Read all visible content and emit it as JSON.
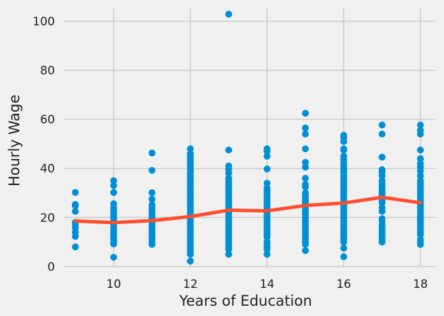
{
  "chart_data": {
    "type": "scatter",
    "title": "",
    "xlabel": "Years of Education",
    "ylabel": "Hourly Wage",
    "xlim": [
      8.7,
      18.4
    ],
    "ylim": [
      -2,
      107
    ],
    "xticks": [
      10,
      12,
      14,
      16,
      18
    ],
    "yticks": [
      0,
      20,
      40,
      60,
      80,
      100
    ],
    "grid": true,
    "legend": "none",
    "colors": {
      "points": "#008fd5",
      "line": "#fc4f30",
      "grid": "#cbcbcb",
      "background": "#f0f0f0"
    },
    "scatter": {
      "9": [
        30.2,
        25.3,
        24.8,
        22.5,
        18.0,
        17.2,
        15.8,
        14.0,
        12.3,
        8.0
      ],
      "10": [
        35.0,
        33.0,
        30.2,
        25.6,
        24.0,
        22.8,
        22.0,
        21.0,
        20.0,
        19.0,
        18.0,
        17.0,
        16.0,
        15.0,
        14.0,
        13.0,
        12.0,
        11.0,
        10.0,
        9.2,
        3.8
      ],
      "11": [
        46.3,
        39.2,
        30.1,
        27.5,
        25.2,
        24.0,
        23.0,
        22.0,
        21.0,
        20.0,
        19.0,
        18.0,
        17.0,
        16.0,
        15.0,
        14.0,
        13.0,
        12.0,
        11.0,
        10.0,
        9.0
      ],
      "12": [
        48.0,
        46.0,
        45.0,
        44.0,
        43.0,
        42.0,
        41.0,
        40.0,
        39.0,
        38.0,
        37.0,
        36.0,
        35.0,
        34.0,
        33.0,
        32.0,
        31.0,
        30.0,
        29.0,
        28.0,
        27.0,
        26.0,
        25.0,
        24.0,
        23.0,
        22.0,
        21.0,
        20.0,
        19.0,
        18.0,
        17.0,
        16.0,
        15.0,
        14.0,
        13.0,
        12.0,
        11.0,
        10.0,
        9.0,
        8.0,
        7.0,
        6.0,
        5.0,
        2.2
      ],
      "13": [
        102.9,
        47.5,
        41.0,
        39.5,
        38.0,
        36.0,
        35.0,
        34.0,
        33.0,
        32.0,
        31.0,
        30.0,
        29.0,
        28.0,
        27.0,
        26.0,
        25.0,
        24.0,
        23.0,
        22.0,
        21.0,
        20.0,
        19.0,
        18.0,
        17.0,
        16.0,
        15.0,
        14.0,
        13.0,
        12.0,
        11.0,
        10.0,
        9.0,
        8.0,
        7.0,
        5.0
      ],
      "14": [
        48.0,
        47.0,
        45.0,
        39.8,
        34.0,
        32.0,
        31.0,
        30.0,
        29.0,
        28.0,
        27.0,
        26.0,
        25.0,
        24.0,
        23.0,
        22.0,
        21.0,
        20.0,
        19.0,
        18.0,
        17.0,
        16.0,
        15.0,
        14.0,
        13.0,
        12.0,
        10.0,
        9.0,
        8.0,
        7.0,
        5.0
      ],
      "15": [
        62.5,
        56.5,
        54.0,
        48.0,
        42.5,
        40.5,
        36.0,
        33.5,
        32.5,
        30.0,
        29.0,
        28.0,
        27.0,
        26.0,
        25.0,
        24.0,
        23.0,
        22.0,
        21.0,
        20.0,
        19.0,
        18.0,
        17.0,
        16.0,
        15.0,
        14.0,
        13.0,
        12.0,
        11.0,
        10.0,
        9.0,
        6.5
      ],
      "16": [
        53.5,
        52.5,
        51.0,
        48.0,
        47.5,
        45.0,
        43.5,
        42.0,
        41.0,
        40.0,
        39.0,
        38.0,
        37.0,
        36.0,
        35.0,
        34.0,
        33.0,
        32.0,
        31.0,
        30.0,
        29.0,
        28.0,
        27.0,
        26.0,
        25.0,
        24.0,
        23.0,
        22.0,
        21.0,
        20.0,
        19.0,
        18.0,
        17.0,
        16.0,
        15.0,
        14.0,
        13.0,
        12.0,
        11.0,
        10.0,
        7.5,
        4.0
      ],
      "17": [
        57.7,
        54.0,
        44.6,
        39.5,
        38.5,
        37.0,
        35.0,
        34.0,
        33.0,
        32.0,
        31.0,
        30.0,
        29.0,
        28.0,
        27.0,
        26.0,
        24.0,
        22.5,
        19.5,
        18.5,
        17.0,
        16.0,
        15.0,
        14.0,
        13.0,
        12.0,
        11.0,
        10.0
      ],
      "18": [
        57.7,
        55.5,
        54.0,
        47.5,
        44.0,
        42.0,
        40.5,
        39.0,
        37.0,
        35.0,
        34.0,
        33.0,
        32.0,
        31.0,
        30.0,
        29.0,
        28.0,
        27.0,
        26.0,
        25.0,
        24.0,
        23.0,
        22.0,
        21.0,
        20.0,
        19.0,
        18.0,
        17.0,
        16.0,
        15.0,
        14.0,
        13.0,
        11.0,
        10.0,
        9.0
      ]
    },
    "mean_line": {
      "x": [
        9,
        10,
        11,
        12,
        13,
        14,
        15,
        16,
        17,
        18
      ],
      "y": [
        18.6,
        17.9,
        18.7,
        20.4,
        23.0,
        22.7,
        24.9,
        25.9,
        28.2,
        26.0
      ]
    }
  }
}
